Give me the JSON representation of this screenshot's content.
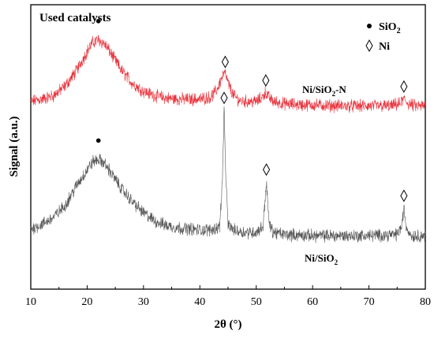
{
  "chart_data": {
    "type": "line",
    "title": "Used catalysts",
    "xlabel": "2θ (°)",
    "ylabel": "Signal (a.u.)",
    "xlim": [
      10,
      80
    ],
    "xticks": [
      "10",
      "20",
      "30",
      "40",
      "50",
      "60",
      "70",
      "80"
    ],
    "y_ticks_shown": false,
    "grid": false,
    "legend": {
      "placement": "top-right",
      "entries": [
        {
          "marker": "dot",
          "label": "SiO",
          "subscript": "2"
        },
        {
          "marker": "diamond",
          "label": "Ni"
        }
      ]
    },
    "series": [
      {
        "label_main": "Ni/SiO",
        "label_sub": "2",
        "label_suffix": "-N",
        "color": "#e8323c",
        "noise": 0.045,
        "x": [
          10,
          12,
          14,
          16,
          18,
          20,
          21,
          22,
          23,
          24,
          26,
          28,
          30,
          32,
          34,
          36,
          38,
          40,
          42,
          43,
          44,
          44.3,
          44.6,
          45,
          46,
          47,
          48,
          50,
          51,
          51.6,
          52.2,
          53,
          55,
          58,
          60,
          65,
          70,
          74,
          75.5,
          76.2,
          77,
          78,
          80
        ],
        "y": [
          0.2,
          0.22,
          0.25,
          0.33,
          0.46,
          0.64,
          0.72,
          0.74,
          0.71,
          0.64,
          0.48,
          0.36,
          0.29,
          0.25,
          0.23,
          0.22,
          0.22,
          0.22,
          0.24,
          0.3,
          0.42,
          0.45,
          0.43,
          0.36,
          0.25,
          0.21,
          0.2,
          0.2,
          0.23,
          0.28,
          0.24,
          0.2,
          0.18,
          0.17,
          0.17,
          0.16,
          0.16,
          0.16,
          0.18,
          0.22,
          0.18,
          0.16,
          0.16
        ],
        "peak_markers": [
          {
            "type": "dot",
            "x": 22
          },
          {
            "type": "diamond",
            "x": 44.5
          },
          {
            "type": "diamond",
            "x": 51.7
          },
          {
            "type": "diamond",
            "x": 76.2
          }
        ]
      },
      {
        "label_main": "Ni/SiO",
        "label_sub": "2",
        "label_suffix": "",
        "color": "#555555",
        "noise": 0.045,
        "x": [
          10,
          12,
          14,
          16,
          18,
          20,
          21,
          22,
          23,
          24,
          26,
          28,
          30,
          32,
          34,
          36,
          38,
          40,
          42,
          43.5,
          44.0,
          44.3,
          44.6,
          45.0,
          46,
          48,
          50,
          51.2,
          51.8,
          52.3,
          53,
          55,
          60,
          65,
          70,
          75,
          75.8,
          76.2,
          76.6,
          77.5,
          80
        ],
        "y": [
          -0.92,
          -0.88,
          -0.82,
          -0.72,
          -0.55,
          -0.4,
          -0.33,
          -0.31,
          -0.34,
          -0.41,
          -0.56,
          -0.68,
          -0.78,
          -0.85,
          -0.89,
          -0.91,
          -0.92,
          -0.93,
          -0.93,
          -0.9,
          -0.5,
          0.12,
          -0.45,
          -0.88,
          -0.93,
          -0.95,
          -0.95,
          -0.9,
          -0.51,
          -0.88,
          -0.95,
          -0.97,
          -0.98,
          -0.98,
          -0.98,
          -0.97,
          -0.9,
          -0.74,
          -0.9,
          -0.98,
          -0.98
        ],
        "peak_markers": [
          {
            "type": "dot",
            "x": 22
          },
          {
            "type": "diamond",
            "x": 44.3
          },
          {
            "type": "diamond",
            "x": 51.8
          },
          {
            "type": "diamond",
            "x": 76.2
          }
        ]
      }
    ]
  }
}
